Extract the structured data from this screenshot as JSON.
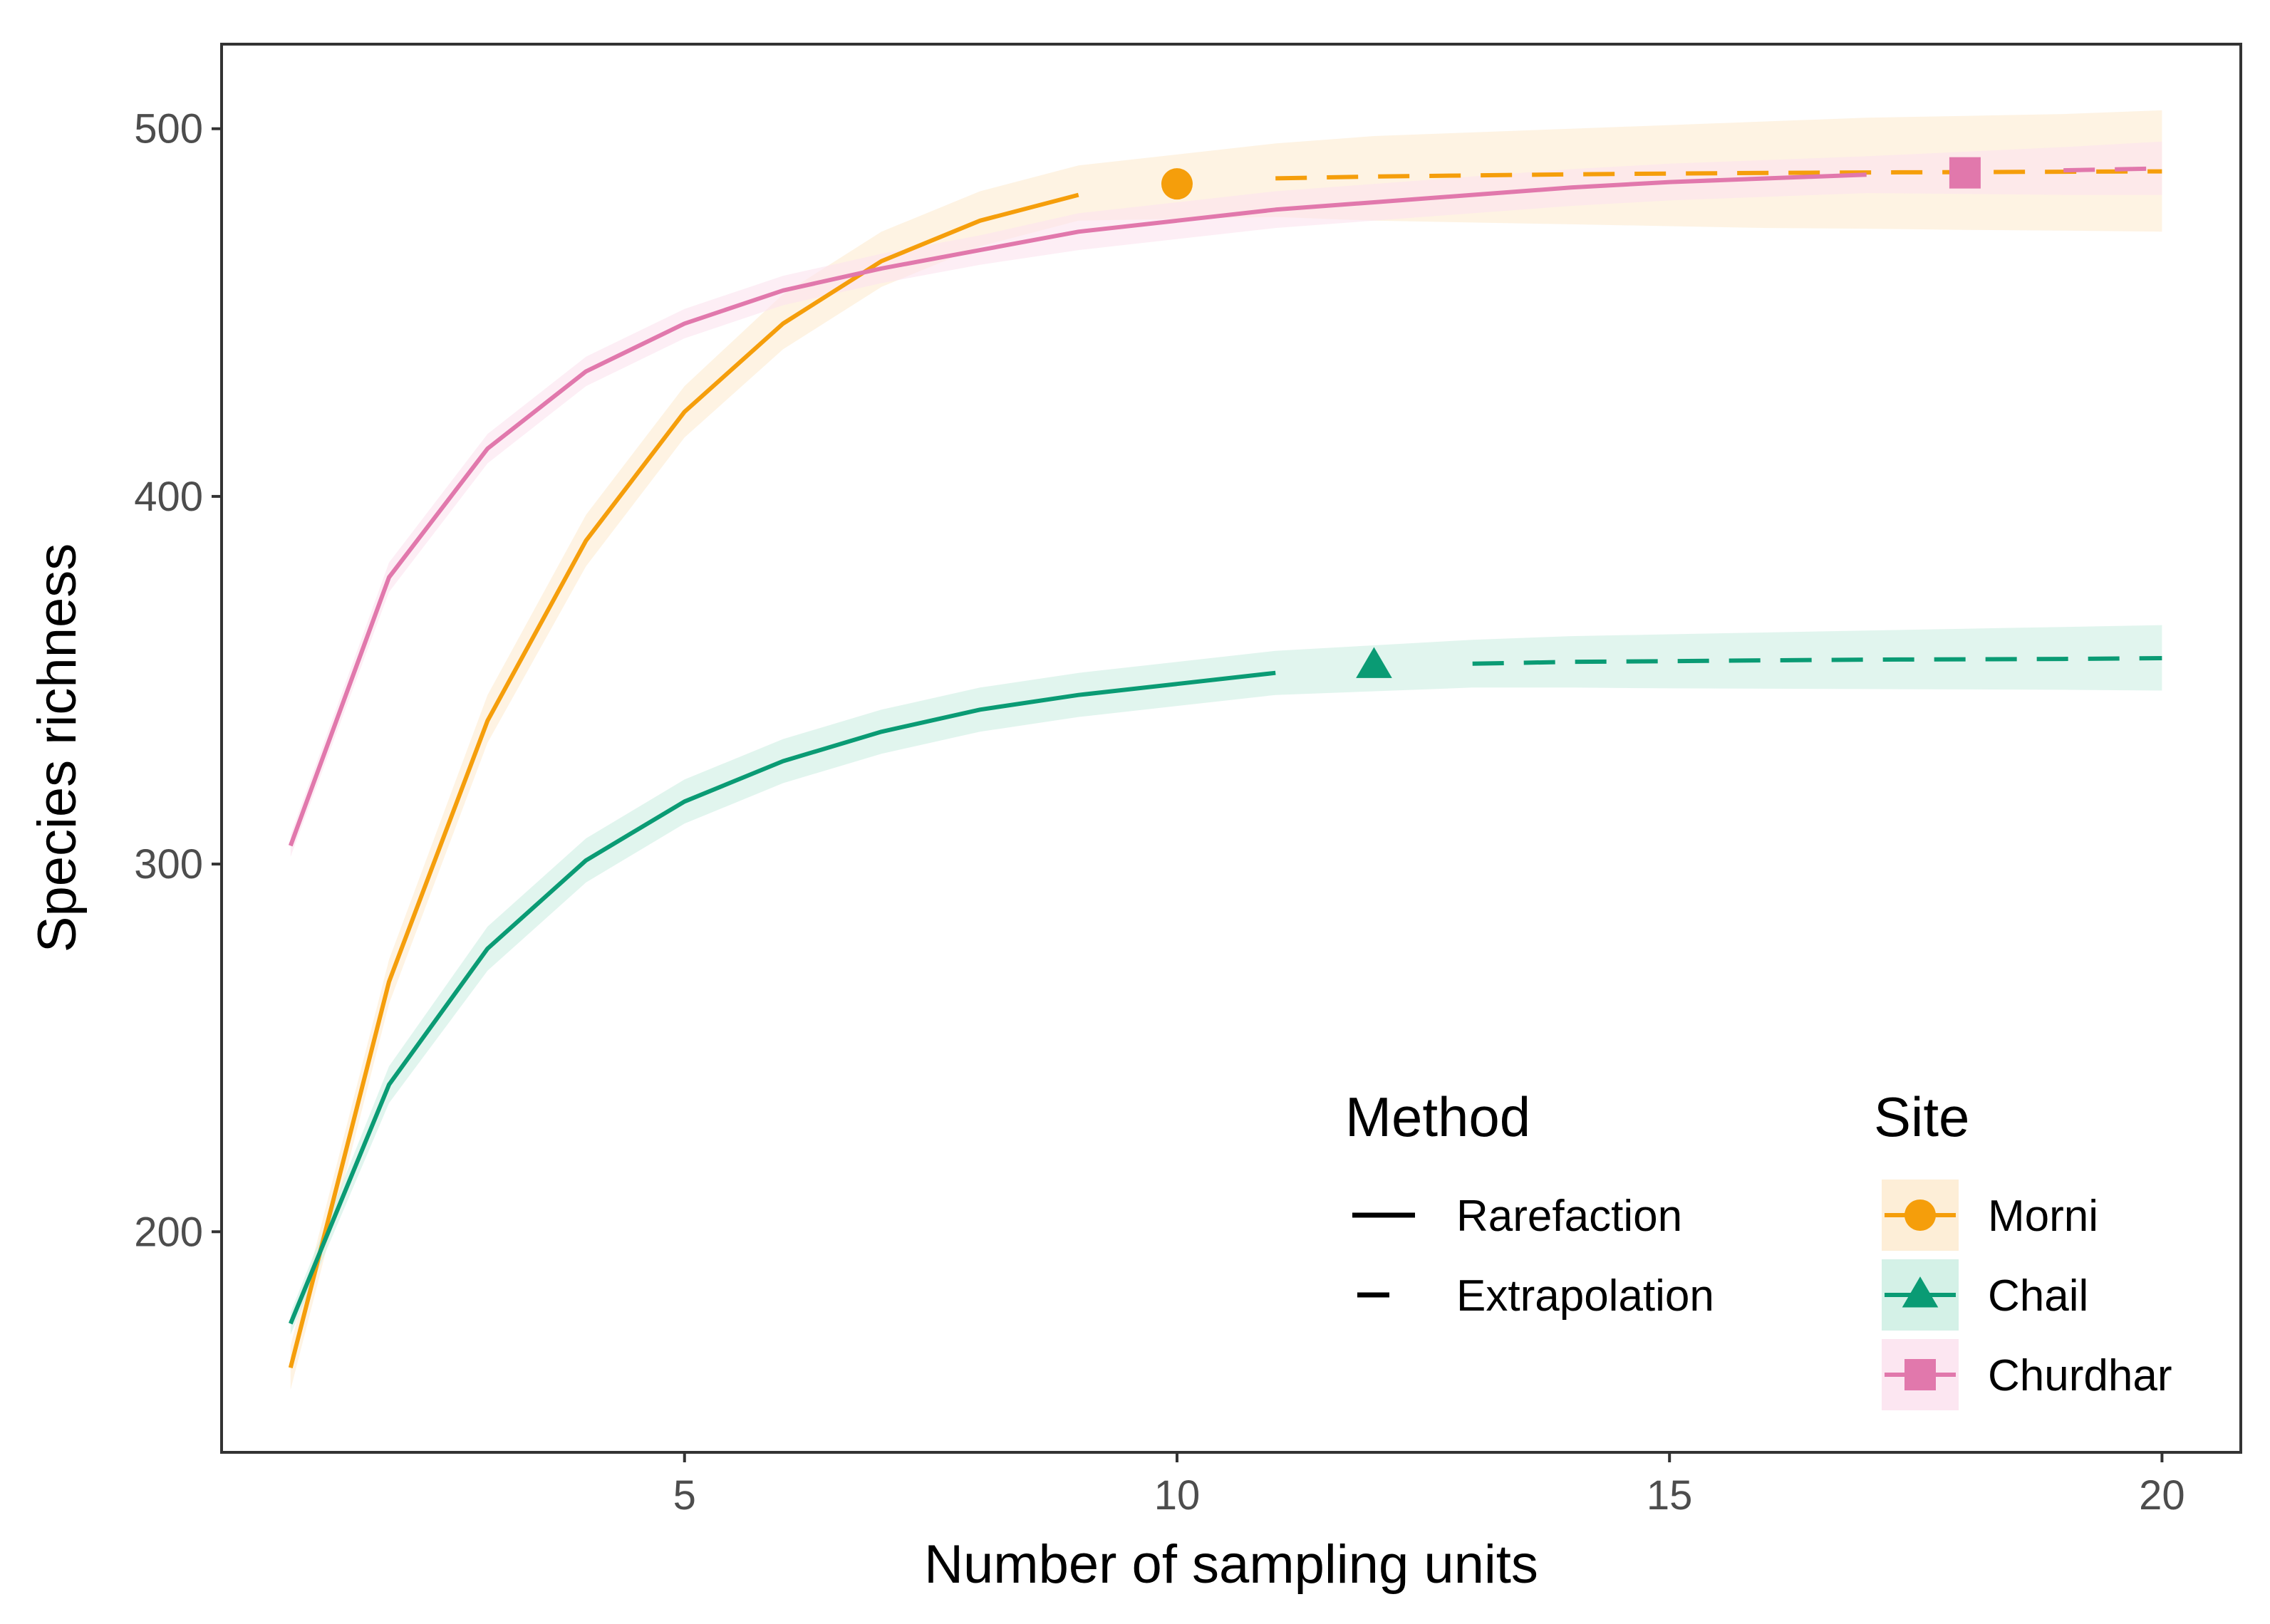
{
  "chart_data": {
    "type": "line",
    "title": "",
    "xlabel": "Number of sampling units",
    "ylabel": "Species richness",
    "xlim": [
      0.3,
      20.8
    ],
    "ylim": [
      140,
      523
    ],
    "x_ticks": [
      5,
      10,
      15,
      20
    ],
    "y_ticks": [
      200,
      300,
      400,
      500
    ],
    "grid": false,
    "legend": {
      "position": "bottom-right",
      "method_title": "Method",
      "method_items": [
        {
          "label": "Rarefaction",
          "dash": "solid"
        },
        {
          "label": "Extrapolation",
          "dash": "dashed"
        }
      ],
      "site_title": "Site"
    },
    "series": [
      {
        "name": "Morni",
        "color": "#F59E0B",
        "band_color": "#FDEBD0",
        "marker": "circle",
        "observed": {
          "x": 10,
          "y": 485
        },
        "rarefaction": {
          "x": [
            1,
            2,
            3,
            4,
            5,
            6,
            7,
            8,
            9
          ],
          "y": [
            163,
            268,
            339,
            388,
            423,
            447,
            464,
            475,
            482
          ],
          "lower": [
            157,
            262,
            333,
            381,
            416,
            440,
            457,
            468,
            475
          ],
          "upper": [
            169,
            274,
            346,
            395,
            430,
            455,
            472,
            483,
            490
          ]
        },
        "extrapolation": {
          "x": [
            11,
            12,
            13,
            14,
            15,
            16,
            17,
            18,
            19,
            20
          ],
          "y": [
            486.5,
            487,
            487.3,
            487.6,
            487.8,
            488,
            488.1,
            488.2,
            488.3,
            488.4
          ],
          "lower": [
            476,
            475,
            474.5,
            474,
            473.5,
            473,
            472.8,
            472.5,
            472.3,
            472
          ],
          "upper": [
            496,
            498,
            499,
            500,
            501,
            502,
            503,
            503.5,
            504,
            505
          ]
        }
      },
      {
        "name": "Chail",
        "color": "#0A9B74",
        "band_color": "#CDEFE3",
        "marker": "triangle",
        "observed": {
          "x": 12,
          "y": 354
        },
        "rarefaction": {
          "x": [
            1,
            2,
            3,
            4,
            5,
            6,
            7,
            8,
            9,
            10,
            11
          ],
          "y": [
            175,
            240,
            277,
            301,
            317,
            328,
            336,
            342,
            346,
            349,
            352
          ],
          "lower": [
            172,
            235,
            271,
            295,
            311,
            322,
            330,
            336,
            340,
            343,
            346
          ],
          "upper": [
            178,
            245,
            283,
            307,
            323,
            334,
            342,
            348,
            352,
            355,
            358
          ]
        },
        "extrapolation": {
          "x": [
            13,
            14,
            15,
            16,
            17,
            18,
            19,
            20
          ],
          "y": [
            354.5,
            355,
            355.2,
            355.4,
            355.6,
            355.7,
            355.8,
            356
          ],
          "lower": [
            348,
            348,
            347.8,
            347.7,
            347.6,
            347.5,
            347.4,
            347.2
          ],
          "upper": [
            361,
            362,
            362.5,
            363,
            363.5,
            364,
            364.5,
            365
          ]
        }
      },
      {
        "name": "Churdhar",
        "color": "#E178AC",
        "band_color": "#FBE2EE",
        "marker": "square",
        "observed": {
          "x": 18,
          "y": 488
        },
        "rarefaction": {
          "x": [
            1,
            2,
            3,
            4,
            5,
            6,
            7,
            8,
            9,
            10,
            11,
            12,
            13,
            14,
            15,
            16,
            17
          ],
          "y": [
            305,
            378,
            413,
            434,
            447,
            456,
            462,
            467,
            472,
            475,
            478,
            480,
            482,
            484,
            485.5,
            486.5,
            487.5
          ],
          "lower": [
            302,
            374,
            409,
            430,
            443,
            452,
            458,
            463,
            467,
            470,
            473,
            475,
            477,
            479,
            480.5,
            481.5,
            482.5
          ],
          "upper": [
            308,
            382,
            417,
            438,
            451,
            460,
            466,
            471,
            477,
            480,
            483,
            485,
            487,
            489,
            490.5,
            491.5,
            492.5
          ]
        },
        "extrapolation": {
          "x": [
            19,
            20
          ],
          "y": [
            488.7,
            489.2
          ],
          "lower": [
            482,
            482
          ],
          "upper": [
            495,
            496.5
          ]
        }
      }
    ]
  }
}
